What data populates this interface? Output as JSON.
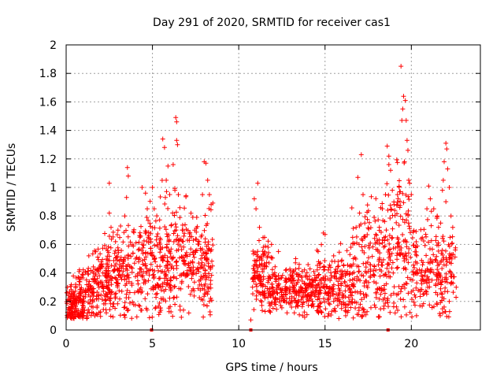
{
  "chart_data": {
    "type": "scatter",
    "title": "Day 291 of 2020, SRMTID for receiver cas1",
    "xlabel": "GPS time / hours",
    "ylabel": "SRMTID / TECUs",
    "xlim": [
      0,
      24
    ],
    "ylim": [
      0,
      2
    ],
    "xticks": [
      0,
      5,
      10,
      15,
      20
    ],
    "yticks": [
      0,
      0.2,
      0.4,
      0.6,
      0.8,
      1,
      1.2,
      1.4,
      1.6,
      1.8,
      2
    ],
    "xtick_labels": [
      "0",
      "5",
      "10",
      "15",
      "20"
    ],
    "ytick_labels": [
      "0",
      "0.2",
      "0.4",
      "0.6",
      "0.8",
      "1",
      "1.2",
      "1.4",
      "1.6",
      "1.8",
      "2"
    ],
    "grid": true,
    "marker": "plus",
    "color": "#ff0000",
    "gap_markers_x": [
      4.95,
      10.7,
      18.65
    ],
    "segments": [
      {
        "t0": 0.0,
        "t1": 1.0,
        "base0": 0.15,
        "base1": 0.22,
        "spread": 0.09,
        "count": 160
      },
      {
        "t0": 1.0,
        "t1": 2.5,
        "base0": 0.22,
        "base1": 0.38,
        "spread": 0.13,
        "count": 190
      },
      {
        "t0": 2.5,
        "t1": 4.8,
        "base0": 0.38,
        "base1": 0.45,
        "spread": 0.16,
        "count": 230
      },
      {
        "t0": 4.8,
        "t1": 6.8,
        "base0": 0.45,
        "base1": 0.5,
        "spread": 0.2,
        "count": 220
      },
      {
        "t0": 6.8,
        "t1": 8.5,
        "base0": 0.5,
        "base1": 0.42,
        "spread": 0.17,
        "count": 180
      },
      {
        "t0": 10.8,
        "t1": 12.0,
        "base0": 0.42,
        "base1": 0.28,
        "spread": 0.12,
        "count": 150
      },
      {
        "t0": 12.0,
        "t1": 14.5,
        "base0": 0.26,
        "base1": 0.3,
        "spread": 0.08,
        "count": 240
      },
      {
        "t0": 14.5,
        "t1": 16.5,
        "base0": 0.3,
        "base1": 0.33,
        "spread": 0.11,
        "count": 200
      },
      {
        "t0": 16.5,
        "t1": 18.5,
        "base0": 0.38,
        "base1": 0.5,
        "spread": 0.2,
        "count": 190
      },
      {
        "t0": 18.5,
        "t1": 20.0,
        "base0": 0.55,
        "base1": 0.55,
        "spread": 0.25,
        "count": 150
      },
      {
        "t0": 20.0,
        "t1": 22.6,
        "base0": 0.45,
        "base1": 0.4,
        "spread": 0.16,
        "count": 220
      }
    ],
    "peaks": [
      {
        "x": 0.05,
        "y": 0.26
      },
      {
        "x": 0.2,
        "y": 0.27
      },
      {
        "x": 0.55,
        "y": 0.32
      },
      {
        "x": 0.7,
        "y": 0.37
      },
      {
        "x": 1.3,
        "y": 0.32
      },
      {
        "x": 2.5,
        "y": 1.03
      },
      {
        "x": 2.5,
        "y": 0.82
      },
      {
        "x": 2.6,
        "y": 0.72
      },
      {
        "x": 3.0,
        "y": 0.7
      },
      {
        "x": 3.4,
        "y": 0.8
      },
      {
        "x": 3.5,
        "y": 0.93
      },
      {
        "x": 3.55,
        "y": 1.14
      },
      {
        "x": 3.6,
        "y": 1.08
      },
      {
        "x": 3.4,
        "y": 0.16
      },
      {
        "x": 3.6,
        "y": 0.14
      },
      {
        "x": 4.4,
        "y": 1.0
      },
      {
        "x": 4.6,
        "y": 0.96
      },
      {
        "x": 4.7,
        "y": 0.85
      },
      {
        "x": 5.0,
        "y": 1.0
      },
      {
        "x": 5.1,
        "y": 0.85
      },
      {
        "x": 5.6,
        "y": 1.34
      },
      {
        "x": 5.7,
        "y": 1.28
      },
      {
        "x": 5.8,
        "y": 1.05
      },
      {
        "x": 5.9,
        "y": 1.15
      },
      {
        "x": 6.0,
        "y": 0.95
      },
      {
        "x": 6.2,
        "y": 1.16
      },
      {
        "x": 6.35,
        "y": 1.49
      },
      {
        "x": 6.4,
        "y": 1.46
      },
      {
        "x": 6.4,
        "y": 1.33
      },
      {
        "x": 6.45,
        "y": 1.3
      },
      {
        "x": 6.3,
        "y": 0.98
      },
      {
        "x": 6.5,
        "y": 0.95
      },
      {
        "x": 5.2,
        "y": 0.25
      },
      {
        "x": 5.5,
        "y": 0.22
      },
      {
        "x": 6.8,
        "y": 0.14
      },
      {
        "x": 7.2,
        "y": 0.25
      },
      {
        "x": 8.0,
        "y": 1.18
      },
      {
        "x": 8.1,
        "y": 1.17
      },
      {
        "x": 8.2,
        "y": 1.05
      },
      {
        "x": 8.3,
        "y": 0.95
      },
      {
        "x": 8.4,
        "y": 0.88
      },
      {
        "x": 8.5,
        "y": 0.89
      },
      {
        "x": 7.9,
        "y": 0.95
      },
      {
        "x": 8.3,
        "y": 0.2
      },
      {
        "x": 10.7,
        "y": 0.07
      },
      {
        "x": 11.1,
        "y": 1.03
      },
      {
        "x": 10.9,
        "y": 0.92
      },
      {
        "x": 11.0,
        "y": 0.85
      },
      {
        "x": 11.2,
        "y": 0.72
      },
      {
        "x": 11.5,
        "y": 0.65
      },
      {
        "x": 11.7,
        "y": 0.58
      },
      {
        "x": 11.9,
        "y": 0.6
      },
      {
        "x": 12.3,
        "y": 0.55
      },
      {
        "x": 13.3,
        "y": 0.5
      },
      {
        "x": 13.5,
        "y": 0.46
      },
      {
        "x": 12.8,
        "y": 0.12
      },
      {
        "x": 13.7,
        "y": 0.1
      },
      {
        "x": 14.9,
        "y": 0.68
      },
      {
        "x": 15.0,
        "y": 0.67
      },
      {
        "x": 14.6,
        "y": 0.55
      },
      {
        "x": 15.5,
        "y": 0.52
      },
      {
        "x": 15.8,
        "y": 0.08
      },
      {
        "x": 16.2,
        "y": 0.1
      },
      {
        "x": 16.5,
        "y": 0.58
      },
      {
        "x": 16.6,
        "y": 0.65
      },
      {
        "x": 16.8,
        "y": 0.72
      },
      {
        "x": 17.0,
        "y": 0.82
      },
      {
        "x": 17.1,
        "y": 1.23
      },
      {
        "x": 16.9,
        "y": 1.07
      },
      {
        "x": 17.2,
        "y": 0.95
      },
      {
        "x": 17.0,
        "y": 0.73
      },
      {
        "x": 17.3,
        "y": 0.75
      },
      {
        "x": 18.1,
        "y": 0.09
      },
      {
        "x": 18.4,
        "y": 0.15
      },
      {
        "x": 18.5,
        "y": 0.95
      },
      {
        "x": 18.6,
        "y": 1.29
      },
      {
        "x": 18.7,
        "y": 1.22
      },
      {
        "x": 18.7,
        "y": 1.16
      },
      {
        "x": 18.8,
        "y": 1.12
      },
      {
        "x": 18.9,
        "y": 0.98
      },
      {
        "x": 19.0,
        "y": 0.88
      },
      {
        "x": 19.4,
        "y": 1.85
      },
      {
        "x": 19.55,
        "y": 1.64
      },
      {
        "x": 19.65,
        "y": 1.61
      },
      {
        "x": 19.5,
        "y": 1.55
      },
      {
        "x": 19.45,
        "y": 1.47
      },
      {
        "x": 19.7,
        "y": 1.47
      },
      {
        "x": 19.75,
        "y": 1.33
      },
      {
        "x": 19.8,
        "y": 1.26
      },
      {
        "x": 19.6,
        "y": 1.18
      },
      {
        "x": 19.85,
        "y": 1.05
      },
      {
        "x": 19.9,
        "y": 1.03
      },
      {
        "x": 20.0,
        "y": 0.95
      },
      {
        "x": 19.2,
        "y": 0.95
      },
      {
        "x": 20.3,
        "y": 0.1
      },
      {
        "x": 20.5,
        "y": 0.17
      },
      {
        "x": 21.0,
        "y": 1.01
      },
      {
        "x": 21.1,
        "y": 0.92
      },
      {
        "x": 20.9,
        "y": 0.85
      },
      {
        "x": 21.3,
        "y": 0.85
      },
      {
        "x": 21.5,
        "y": 0.8
      },
      {
        "x": 21.7,
        "y": 0.75
      },
      {
        "x": 22.0,
        "y": 1.31
      },
      {
        "x": 22.05,
        "y": 1.27
      },
      {
        "x": 21.9,
        "y": 1.18
      },
      {
        "x": 22.1,
        "y": 1.13
      },
      {
        "x": 21.85,
        "y": 1.05
      },
      {
        "x": 22.2,
        "y": 1.0
      },
      {
        "x": 21.8,
        "y": 0.98
      },
      {
        "x": 22.0,
        "y": 0.9
      },
      {
        "x": 22.3,
        "y": 0.8
      },
      {
        "x": 22.4,
        "y": 0.72
      },
      {
        "x": 22.6,
        "y": 0.3
      },
      {
        "x": 22.2,
        "y": 0.2
      }
    ]
  }
}
